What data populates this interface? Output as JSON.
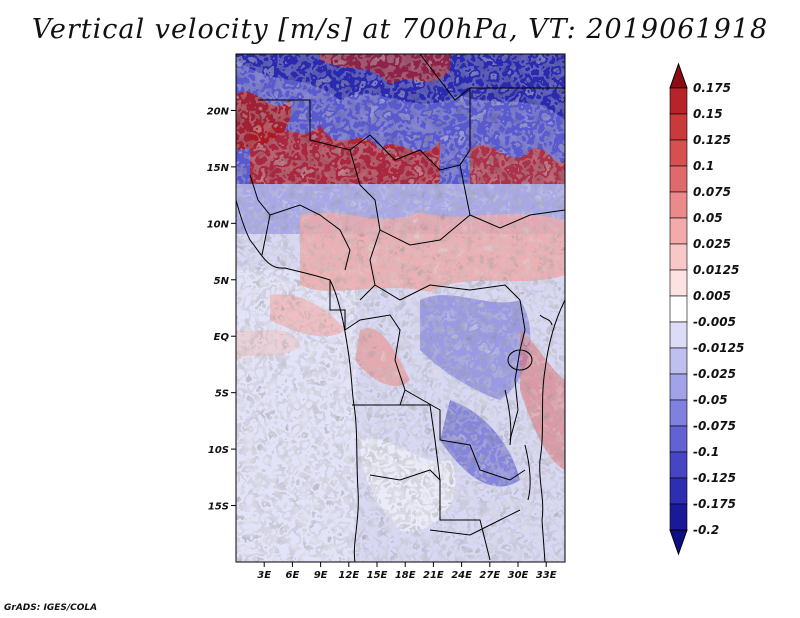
{
  "title": "Vertical velocity [m/s] at 700hPa, VT: 2019061918",
  "credit": "GrADS: IGES/COLA",
  "map": {
    "lat_range": [
      -20,
      25
    ],
    "lon_range": [
      0,
      35
    ],
    "lat_ticks": [
      {
        "value": 20,
        "label": "20N"
      },
      {
        "value": 15,
        "label": "15N"
      },
      {
        "value": 10,
        "label": "10N"
      },
      {
        "value": 5,
        "label": "5N"
      },
      {
        "value": 0,
        "label": "EQ"
      },
      {
        "value": -5,
        "label": "5S"
      },
      {
        "value": -10,
        "label": "10S"
      },
      {
        "value": -15,
        "label": "15S"
      }
    ],
    "lon_ticks": [
      {
        "value": 3,
        "label": "3E"
      },
      {
        "value": 6,
        "label": "6E"
      },
      {
        "value": 9,
        "label": "9E"
      },
      {
        "value": 12,
        "label": "12E"
      },
      {
        "value": 15,
        "label": "15E"
      },
      {
        "value": 18,
        "label": "18E"
      },
      {
        "value": 21,
        "label": "21E"
      },
      {
        "value": 24,
        "label": "24E"
      },
      {
        "value": 27,
        "label": "27E"
      },
      {
        "value": 30,
        "label": "30E"
      },
      {
        "value": 33,
        "label": "33E"
      }
    ]
  },
  "colorbar": {
    "levels": [
      {
        "label": "0.175",
        "color": "#a0141e"
      },
      {
        "label": "0.15",
        "color": "#b8232a"
      },
      {
        "label": "0.125",
        "color": "#c93a3a"
      },
      {
        "label": "0.1",
        "color": "#d65050"
      },
      {
        "label": "0.075",
        "color": "#e06a6a"
      },
      {
        "label": "0.05",
        "color": "#ea8a8a"
      },
      {
        "label": "0.025",
        "color": "#f3aaaa"
      },
      {
        "label": "0.0125",
        "color": "#f8c8c8"
      },
      {
        "label": "0.005",
        "color": "#fce2e2"
      },
      {
        "label": "-0.005",
        "color": "#ffffff"
      },
      {
        "label": "-0.0125",
        "color": "#dcdcf6"
      },
      {
        "label": "-0.025",
        "color": "#c0c0f0"
      },
      {
        "label": "-0.05",
        "color": "#a2a2e8"
      },
      {
        "label": "-0.075",
        "color": "#8080de"
      },
      {
        "label": "-0.1",
        "color": "#6262d2"
      },
      {
        "label": "-0.125",
        "color": "#4646c4"
      },
      {
        "label": "-0.175",
        "color": "#2e2eb0"
      },
      {
        "label": "-0.2",
        "color": "#1a1a98"
      }
    ],
    "top_color": "#8e0a14",
    "bottom_color": "#0e0e84"
  }
}
